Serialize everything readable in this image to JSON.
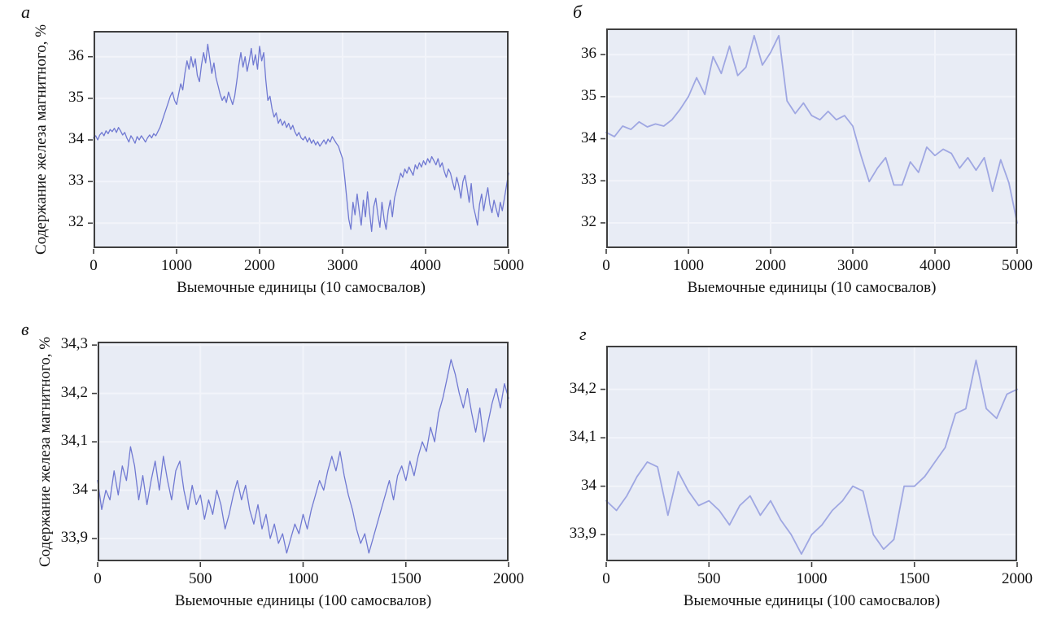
{
  "colors": {
    "plot_background": "#e8ecf5",
    "gridline": "#f2f4fa",
    "frame": "#3f3f3f",
    "series_dense": "#7079d2",
    "series_smooth": "#9fa7e2",
    "text": "#111111"
  },
  "chart_data": [
    {
      "id": "a",
      "type": "line",
      "panel_label": "а",
      "ylabel": "Содержание железа магнитного, %",
      "xlabel": "Выемочные единицы (10 самосвалов)",
      "xlim": [
        0,
        5000
      ],
      "ylim": [
        31.4,
        36.62
      ],
      "grid": true,
      "xticks": [
        {
          "v": 0,
          "label": "0"
        },
        {
          "v": 1000,
          "label": "1000"
        },
        {
          "v": 2000,
          "label": "2000"
        },
        {
          "v": 3000,
          "label": "3000"
        },
        {
          "v": 4000,
          "label": "4000"
        },
        {
          "v": 5000,
          "label": "5000"
        }
      ],
      "yticks": [
        {
          "v": 32,
          "label": "32"
        },
        {
          "v": 33,
          "label": "33"
        },
        {
          "v": 34,
          "label": "34"
        },
        {
          "v": 35,
          "label": "35"
        },
        {
          "v": 36,
          "label": "36"
        }
      ],
      "line_color": "#7079d2",
      "line_width": 1.3,
      "series": {
        "x_start": 0,
        "x_step": 25,
        "values": [
          34.05,
          34.1,
          34.0,
          34.12,
          34.18,
          34.1,
          34.22,
          34.15,
          34.25,
          34.2,
          34.28,
          34.18,
          34.3,
          34.22,
          34.12,
          34.18,
          34.05,
          33.95,
          34.1,
          34.02,
          33.92,
          34.08,
          34.0,
          34.1,
          34.03,
          33.95,
          34.05,
          34.12,
          34.05,
          34.15,
          34.1,
          34.2,
          34.3,
          34.45,
          34.6,
          34.75,
          34.9,
          35.05,
          35.15,
          34.95,
          34.85,
          35.1,
          35.35,
          35.2,
          35.6,
          35.9,
          35.7,
          36.0,
          35.75,
          35.95,
          35.55,
          35.4,
          35.8,
          36.1,
          35.85,
          36.3,
          35.95,
          35.6,
          35.85,
          35.5,
          35.3,
          35.1,
          34.95,
          35.05,
          34.9,
          35.15,
          35.0,
          34.85,
          35.05,
          35.4,
          35.8,
          36.1,
          35.75,
          36.0,
          35.65,
          35.9,
          36.2,
          35.8,
          36.05,
          35.7,
          36.25,
          35.9,
          36.1,
          35.45,
          34.95,
          35.05,
          34.75,
          34.55,
          34.65,
          34.4,
          34.5,
          34.35,
          34.45,
          34.3,
          34.4,
          34.25,
          34.35,
          34.2,
          34.1,
          34.18,
          34.05,
          34.0,
          34.08,
          33.95,
          34.05,
          33.92,
          34.0,
          33.88,
          33.96,
          33.85,
          33.92,
          34.0,
          33.9,
          34.02,
          33.95,
          34.08,
          34.0,
          33.92,
          33.85,
          33.7,
          33.55,
          33.1,
          32.6,
          32.1,
          31.85,
          32.5,
          32.2,
          32.7,
          32.3,
          31.95,
          32.55,
          32.15,
          32.75,
          32.25,
          31.8,
          32.4,
          32.6,
          32.2,
          31.9,
          32.5,
          32.1,
          31.85,
          32.3,
          32.55,
          32.15,
          32.6,
          32.8,
          33.0,
          33.2,
          33.1,
          33.3,
          33.2,
          33.35,
          33.25,
          33.15,
          33.4,
          33.3,
          33.45,
          33.35,
          33.5,
          33.4,
          33.55,
          33.45,
          33.6,
          33.5,
          33.4,
          33.55,
          33.35,
          33.45,
          33.25,
          33.1,
          33.3,
          33.2,
          33.0,
          32.8,
          33.1,
          32.9,
          32.6,
          33.0,
          33.15,
          32.85,
          32.5,
          32.95,
          32.4,
          32.2,
          31.95,
          32.45,
          32.7,
          32.3,
          32.6,
          32.85,
          32.45,
          32.25,
          32.55,
          32.35,
          32.15,
          32.5,
          32.3,
          32.6,
          32.9,
          33.2
        ]
      }
    },
    {
      "id": "b",
      "type": "line",
      "panel_label": "б",
      "ylabel": null,
      "xlabel": "Выемочные единицы (10 самосвалов)",
      "xlim": [
        0,
        5000
      ],
      "ylim": [
        31.4,
        36.62
      ],
      "grid": true,
      "xticks": [
        {
          "v": 0,
          "label": "0"
        },
        {
          "v": 1000,
          "label": "1000"
        },
        {
          "v": 2000,
          "label": "2000"
        },
        {
          "v": 3000,
          "label": "3000"
        },
        {
          "v": 4000,
          "label": "4000"
        },
        {
          "v": 5000,
          "label": "5000"
        }
      ],
      "yticks": [
        {
          "v": 32,
          "label": "32"
        },
        {
          "v": 33,
          "label": "33"
        },
        {
          "v": 34,
          "label": "34"
        },
        {
          "v": 35,
          "label": "35"
        },
        {
          "v": 36,
          "label": "36"
        }
      ],
      "line_color": "#9fa7e2",
      "line_width": 1.8,
      "series": {
        "x_start": 0,
        "x_step": 100,
        "values": [
          34.15,
          34.05,
          34.3,
          34.22,
          34.4,
          34.28,
          34.35,
          34.3,
          34.45,
          34.7,
          35.0,
          35.45,
          35.05,
          35.95,
          35.55,
          36.2,
          35.5,
          35.7,
          36.45,
          35.75,
          36.05,
          36.45,
          34.9,
          34.6,
          34.85,
          34.55,
          34.45,
          34.65,
          34.45,
          34.55,
          34.3,
          33.6,
          32.98,
          33.3,
          33.55,
          32.9,
          32.9,
          33.45,
          33.2,
          33.8,
          33.6,
          33.75,
          33.65,
          33.3,
          33.55,
          33.25,
          33.55,
          32.75,
          33.5,
          32.95,
          32.0
        ]
      }
    },
    {
      "id": "v",
      "type": "line",
      "panel_label": "в",
      "ylabel": "Содержание железа магнитного, %",
      "xlabel": "Выемочные единицы (100 самосвалов)",
      "xlim": [
        0,
        2000
      ],
      "ylim": [
        33.853,
        34.307
      ],
      "grid": true,
      "xticks": [
        {
          "v": 0,
          "label": "0"
        },
        {
          "v": 500,
          "label": "500"
        },
        {
          "v": 1000,
          "label": "1000"
        },
        {
          "v": 1500,
          "label": "1500"
        },
        {
          "v": 2000,
          "label": "2000"
        }
      ],
      "yticks": [
        {
          "v": 33.9,
          "label": "33,9"
        },
        {
          "v": 34,
          "label": "34"
        },
        {
          "v": 34.1,
          "label": "34,1"
        },
        {
          "v": 34.2,
          "label": "34,2"
        },
        {
          "v": 34.3,
          "label": "34,3"
        }
      ],
      "line_color": "#7079d2",
      "line_width": 1.3,
      "series": {
        "x_start": 0,
        "x_step": 20,
        "values": [
          34.02,
          33.96,
          34.0,
          33.98,
          34.04,
          33.99,
          34.05,
          34.02,
          34.09,
          34.05,
          33.98,
          34.03,
          33.97,
          34.02,
          34.06,
          34.0,
          34.07,
          34.02,
          33.98,
          34.04,
          34.06,
          34.0,
          33.96,
          34.01,
          33.97,
          33.99,
          33.94,
          33.98,
          33.95,
          34.0,
          33.97,
          33.92,
          33.95,
          33.99,
          34.02,
          33.98,
          34.01,
          33.96,
          33.93,
          33.97,
          33.92,
          33.95,
          33.9,
          33.93,
          33.89,
          33.91,
          33.87,
          33.9,
          33.93,
          33.91,
          33.95,
          33.92,
          33.96,
          33.99,
          34.02,
          34.0,
          34.04,
          34.07,
          34.04,
          34.08,
          34.03,
          33.99,
          33.96,
          33.92,
          33.89,
          33.91,
          33.87,
          33.9,
          33.93,
          33.96,
          33.99,
          34.02,
          33.98,
          34.03,
          34.05,
          34.02,
          34.06,
          34.03,
          34.07,
          34.1,
          34.08,
          34.13,
          34.1,
          34.16,
          34.19,
          34.23,
          34.27,
          34.24,
          34.2,
          34.17,
          34.21,
          34.16,
          34.12,
          34.17,
          34.1,
          34.14,
          34.18,
          34.21,
          34.17,
          34.22,
          34.19
        ]
      }
    },
    {
      "id": "g",
      "type": "line",
      "panel_label": "г",
      "ylabel": null,
      "xlabel": "Выемочные единицы (100 самосвалов)",
      "xlim": [
        0,
        2000
      ],
      "ylim": [
        33.845,
        34.29
      ],
      "grid": true,
      "xticks": [
        {
          "v": 0,
          "label": "0"
        },
        {
          "v": 500,
          "label": "500"
        },
        {
          "v": 1000,
          "label": "1000"
        },
        {
          "v": 1500,
          "label": "1500"
        },
        {
          "v": 2000,
          "label": "2000"
        }
      ],
      "yticks": [
        {
          "v": 33.9,
          "label": "33,9"
        },
        {
          "v": 34,
          "label": "34"
        },
        {
          "v": 34.1,
          "label": "34,1"
        },
        {
          "v": 34.2,
          "label": "34,2"
        }
      ],
      "line_color": "#9fa7e2",
      "line_width": 1.8,
      "series": {
        "x_start": 0,
        "x_step": 50,
        "values": [
          33.97,
          33.95,
          33.98,
          34.02,
          34.05,
          34.04,
          33.94,
          34.03,
          33.99,
          33.96,
          33.97,
          33.95,
          33.92,
          33.96,
          33.98,
          33.94,
          33.97,
          33.93,
          33.9,
          33.86,
          33.9,
          33.92,
          33.95,
          33.97,
          34.0,
          33.99,
          33.9,
          33.87,
          33.89,
          34.0,
          34.0,
          34.02,
          34.05,
          34.08,
          34.15,
          34.16,
          34.26,
          34.16,
          34.14,
          34.19,
          34.2
        ]
      }
    }
  ]
}
